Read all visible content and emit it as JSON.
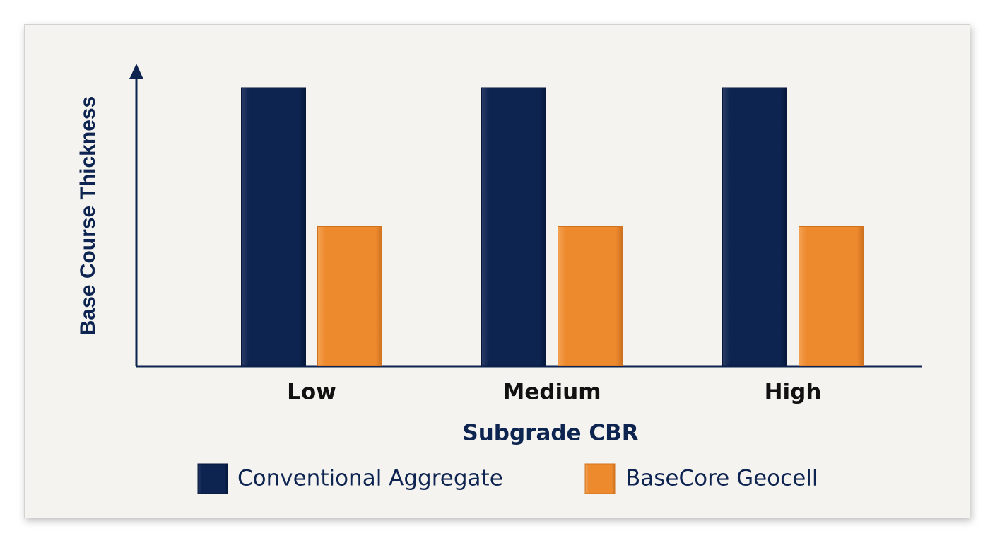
{
  "chart_data": {
    "type": "bar",
    "title": "",
    "xlabel": "Subgrade CBR",
    "ylabel": "Base Course Thickness",
    "categories": [
      "Low",
      "Medium",
      "High"
    ],
    "series": [
      {
        "name": "Conventional Aggregate",
        "values": [
          100,
          100,
          100
        ],
        "color": "#0d2350"
      },
      {
        "name": "BaseCore Geocell",
        "values": [
          50,
          50,
          50
        ],
        "color": "#ee8a2e"
      }
    ],
    "ylim": [
      0,
      100
    ],
    "grid": false,
    "legend": "bottom"
  }
}
